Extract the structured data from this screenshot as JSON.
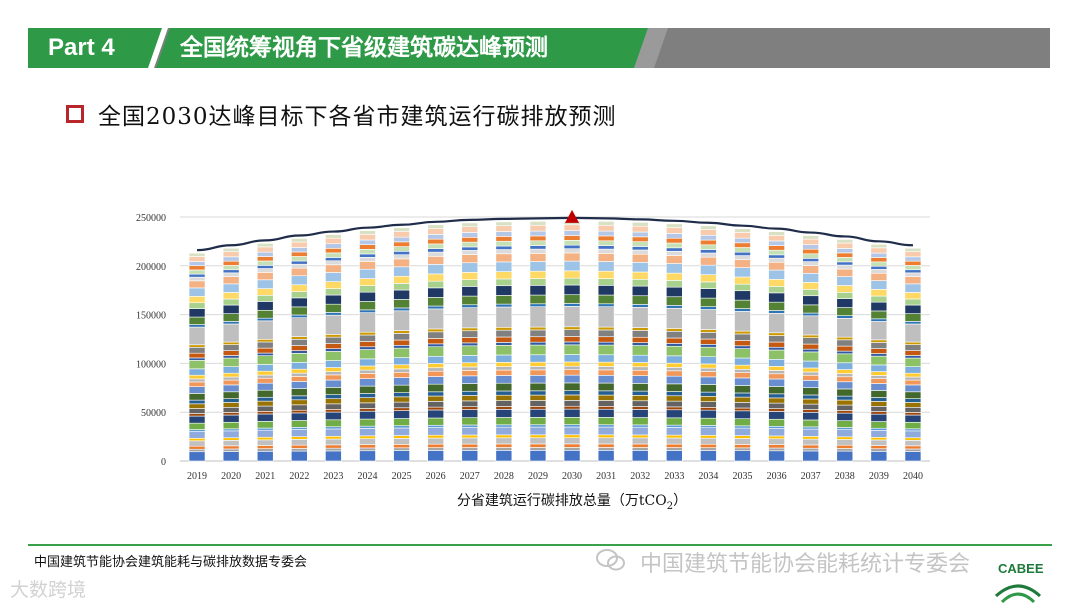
{
  "header": {
    "part": "Part 4",
    "title": "全国统筹视角下省级建筑碳达峰预测",
    "colors": {
      "green": "#2e9a47",
      "gray": "#7f7f7f"
    }
  },
  "subtitle": "全国2030达峰目标下各省市建筑运行碳排放预测",
  "chart_data": {
    "type": "bar",
    "stacked": true,
    "title": "",
    "xlabel": "分省建筑运行碳排放总量（万tCO2）",
    "ylabel": "",
    "categories": [
      "2019",
      "2020",
      "2021",
      "2022",
      "2023",
      "2024",
      "2025",
      "2026",
      "2027",
      "2028",
      "2029",
      "2030",
      "2031",
      "2032",
      "2033",
      "2034",
      "2035",
      "2036",
      "2037",
      "2038",
      "2039",
      "2040"
    ],
    "totals": [
      213000,
      218000,
      223000,
      228000,
      232000,
      236000,
      239000,
      242000,
      244000,
      245000,
      245500,
      246000,
      245500,
      244500,
      243000,
      241000,
      238000,
      235000,
      231000,
      227000,
      222000,
      218000
    ],
    "ylim": [
      0,
      250000
    ],
    "yticks": [
      "0",
      "50000",
      "100000",
      "150000",
      "200000",
      "250000"
    ],
    "peak_year": "2030",
    "segment_weights": [
      5.5,
      1.5,
      1.8,
      3.2,
      1.5,
      4.0,
      1.2,
      3.8,
      4.2,
      1.5,
      3.0,
      2.8,
      2.2,
      4.0,
      4.0,
      2.8,
      1.8,
      2.2,
      3.8,
      5.0,
      1.5,
      2.8,
      3.5,
      1.5,
      10.5,
      1.5,
      4.5,
      5.0,
      3.5,
      3.8,
      5.0,
      4.2,
      2.2,
      1.8,
      2.5,
      2.5,
      2.5,
      3.0,
      2.0
    ],
    "segment_colors": [
      "#4472c4",
      "#a5a5a5",
      "#ed7d31",
      "#c0c0c0",
      "#ffc000",
      "#8faadc",
      "#5b9bd5",
      "#70ad47",
      "#264478",
      "#9e480e",
      "#636363",
      "#997300",
      "#255e91",
      "#43682b",
      "#698ed0",
      "#f1975a",
      "#b7b7b7",
      "#ffcd33",
      "#7cafdd",
      "#8cc168",
      "#335aa1",
      "#c65911",
      "#808080",
      "#cc9a00",
      "#bfbfbf",
      "#2e75b6",
      "#548235",
      "#1f3864",
      "#a9d18e",
      "#ffd966",
      "#9dc3e6",
      "#f4b183",
      "#dbdbdb",
      "#4472c4",
      "#c5e0b4",
      "#ed7d31",
      "#b4c7e7",
      "#f8cbad",
      "#d9e1c5"
    ],
    "line": "national total",
    "colors": {
      "line": "#1f2d4a",
      "peak_marker": "#c00000",
      "grid": "#d9d9d9"
    }
  },
  "footer": {
    "left": "中国建筑节能协会建筑能耗与碳排放数据专委会",
    "watermark": "中国建筑节能协会能耗统计专委会",
    "logo_text": "CABEE",
    "bottom_left_watermark": "大数跨境"
  }
}
